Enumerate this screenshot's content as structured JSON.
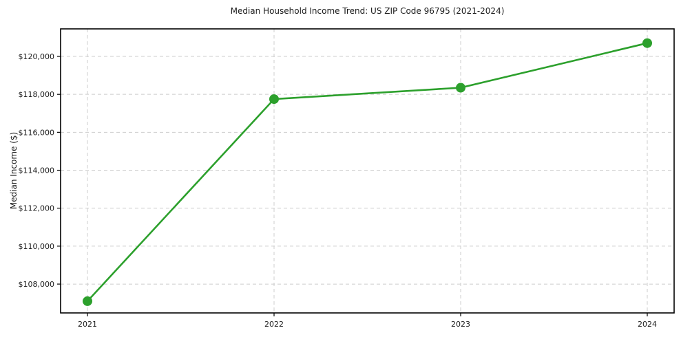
{
  "chart_data": {
    "type": "line",
    "title": "Median Household Income Trend: US ZIP Code 96795 (2021-2024)",
    "xlabel": "",
    "ylabel": "Median Income ($)",
    "categories": [
      "2021",
      "2022",
      "2023",
      "2024"
    ],
    "series": [
      {
        "name": "Median Household Income",
        "values": [
          107100,
          117750,
          118350,
          120700
        ],
        "color": "#2ca02c",
        "marker": "circle"
      }
    ],
    "ylim": [
      106480,
      121450
    ],
    "yticks": [
      108000,
      110000,
      112000,
      114000,
      116000,
      118000,
      120000
    ],
    "ytick_prefix": "$",
    "grid": true,
    "grid_style": "dashed",
    "grid_color": "#cccccc",
    "axis_color": "#000000",
    "legend": "none"
  }
}
